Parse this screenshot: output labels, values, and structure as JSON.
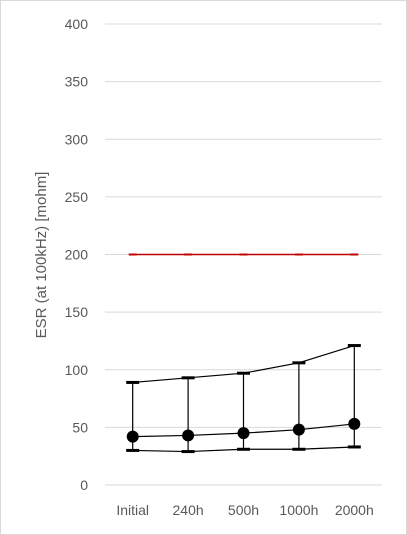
{
  "chart_data": {
    "type": "line",
    "ylabel": "ESR (at 100kHz) [mohm]",
    "ylim": [
      0,
      400
    ],
    "yticks": [
      0,
      50,
      100,
      150,
      200,
      250,
      300,
      350,
      400
    ],
    "categories": [
      "Initial",
      "240h",
      "500h",
      "1000h",
      "2000h"
    ],
    "grid": true,
    "series": [
      {
        "role": "limit",
        "color": "#c00000",
        "values": [
          200,
          200,
          200,
          200,
          200
        ]
      },
      {
        "role": "max",
        "color": "#000000",
        "values": [
          89,
          93,
          97,
          106,
          121
        ]
      },
      {
        "role": "average",
        "color": "#000000",
        "values": [
          42,
          43,
          45,
          48,
          53
        ]
      },
      {
        "role": "min",
        "color": "#000000",
        "values": [
          30,
          29,
          31,
          31,
          33
        ]
      }
    ]
  }
}
